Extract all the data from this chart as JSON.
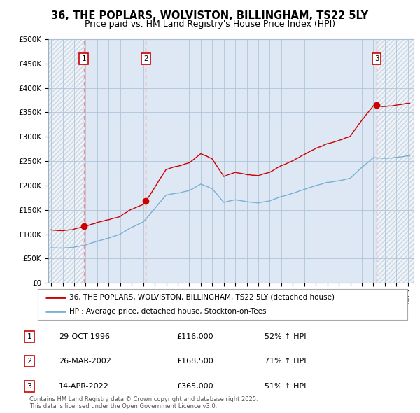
{
  "title": "36, THE POPLARS, WOLVISTON, BILLINGHAM, TS22 5LY",
  "subtitle": "Price paid vs. HM Land Registry's House Price Index (HPI)",
  "title_fontsize": 10.5,
  "subtitle_fontsize": 9,
  "ylim": [
    0,
    500000
  ],
  "yticks": [
    0,
    50000,
    100000,
    150000,
    200000,
    250000,
    300000,
    350000,
    400000,
    450000,
    500000
  ],
  "ytick_labels": [
    "£0",
    "£50K",
    "£100K",
    "£150K",
    "£200K",
    "£250K",
    "£300K",
    "£350K",
    "£400K",
    "£450K",
    "£500K"
  ],
  "xmin": 1993.75,
  "xmax": 2025.5,
  "plot_bg_color": "#dde8f4",
  "hatch_bg_color": "#c8d8e8",
  "transactions": [
    {
      "year": 1996.83,
      "price": 116000,
      "label": "1",
      "date": "29-OCT-1996",
      "price_str": "£116,000",
      "hpi_pct": "52% ↑ HPI"
    },
    {
      "year": 2002.23,
      "price": 168500,
      "label": "2",
      "date": "26-MAR-2002",
      "price_str": "£168,500",
      "hpi_pct": "71% ↑ HPI"
    },
    {
      "year": 2022.28,
      "price": 365000,
      "label": "3",
      "date": "14-APR-2022",
      "price_str": "£365,000",
      "hpi_pct": "51% ↑ HPI"
    }
  ],
  "property_line_color": "#cc0000",
  "hpi_line_color": "#7bafd4",
  "transaction_vline_color": "#ff8888",
  "marker_box_color": "#cc0000",
  "grid_color": "#b0c4d8",
  "bg_color": "#ffffff",
  "legend_labels": [
    "36, THE POPLARS, WOLVISTON, BILLINGHAM, TS22 5LY (detached house)",
    "HPI: Average price, detached house, Stockton-on-Tees"
  ],
  "footer_text": "Contains HM Land Registry data © Crown copyright and database right 2025.\nThis data is licensed under the Open Government Licence v3.0."
}
